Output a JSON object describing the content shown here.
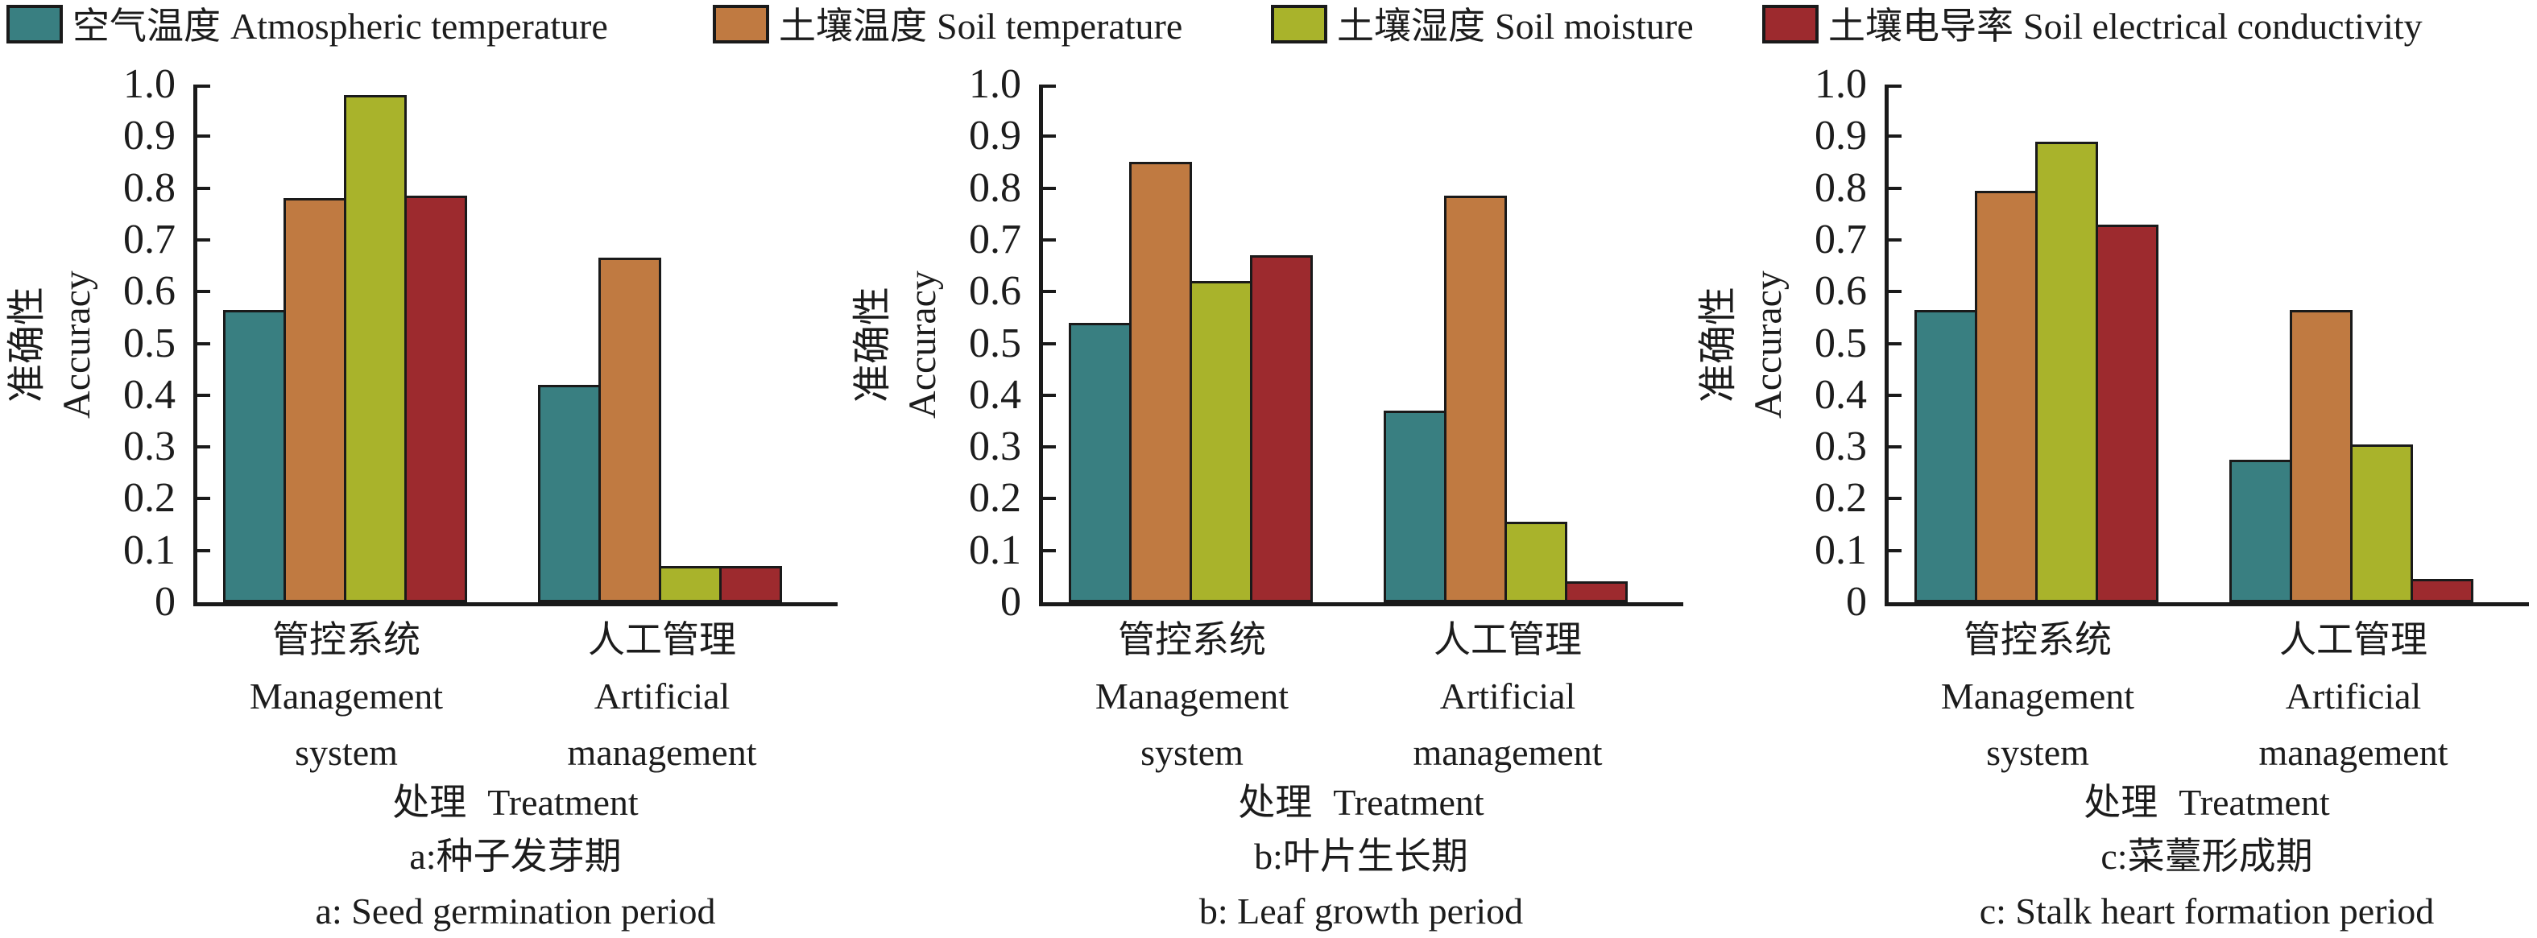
{
  "legend": {
    "items": [
      {
        "slug": "atmospheric-temperature",
        "label_zh": "空气温度",
        "label_en": "Atmospheric temperature",
        "color": "#397f81"
      },
      {
        "slug": "soil-temperature",
        "label_zh": "土壤温度",
        "label_en": "Soil temperature",
        "color": "#c07a41"
      },
      {
        "slug": "soil-moisture",
        "label_zh": "土壤湿度",
        "label_en": "Soil moisture",
        "color": "#a9b32b"
      },
      {
        "slug": "soil-electrical-conductivity",
        "label_zh": "土壤电导率",
        "label_en": "Soil electrical conductivity",
        "color": "#9d2a2e"
      }
    ]
  },
  "axis": {
    "ylabel_zh": "准确性",
    "ylabel_en": "Accuracy",
    "xlabel_zh": "处理",
    "xlabel_en": "Treatment",
    "yticks": [
      "1.0",
      "0.9",
      "0.8",
      "0.7",
      "0.6",
      "0.5",
      "0.4",
      "0.3",
      "0.2",
      "0.1",
      "0"
    ],
    "ylim": [
      0,
      1
    ],
    "grid": false
  },
  "chart_data": [
    {
      "type": "bar",
      "panel": "a",
      "caption_zh": "a:种子发芽期",
      "caption_en": "a: Seed germination period",
      "categories": [
        {
          "zh": "管控系统",
          "en_line1": "Management",
          "en_line2": "system"
        },
        {
          "zh": "人工管理",
          "en_line1": "Artificial",
          "en_line2": "management"
        }
      ],
      "series": [
        {
          "name": "空气温度 Atmospheric temperature",
          "values": [
            0.565,
            0.42
          ]
        },
        {
          "name": "土壤温度 Soil temperature",
          "values": [
            0.78,
            0.665
          ]
        },
        {
          "name": "土壤湿度 Soil moisture",
          "values": [
            0.98,
            0.07
          ]
        },
        {
          "name": "土壤电导率 Soil electrical conductivity",
          "values": [
            0.785,
            0.07
          ]
        }
      ]
    },
    {
      "type": "bar",
      "panel": "b",
      "caption_zh": "b:叶片生长期",
      "caption_en": "b: Leaf growth period",
      "categories": [
        {
          "zh": "管控系统",
          "en_line1": "Management",
          "en_line2": "system"
        },
        {
          "zh": "人工管理",
          "en_line1": "Artificial",
          "en_line2": "management"
        }
      ],
      "series": [
        {
          "name": "空气温度 Atmospheric temperature",
          "values": [
            0.54,
            0.37
          ]
        },
        {
          "name": "土壤温度 Soil temperature",
          "values": [
            0.85,
            0.785
          ]
        },
        {
          "name": "土壤湿度 Soil moisture",
          "values": [
            0.62,
            0.155
          ]
        },
        {
          "name": "土壤电导率 Soil electrical conductivity",
          "values": [
            0.67,
            0.04
          ]
        }
      ]
    },
    {
      "type": "bar",
      "panel": "c",
      "caption_zh": "c:菜薹形成期",
      "caption_en": "c: Stalk heart formation period",
      "categories": [
        {
          "zh": "管控系统",
          "en_line1": "Management",
          "en_line2": "system"
        },
        {
          "zh": "人工管理",
          "en_line1": "Artificial",
          "en_line2": "management"
        }
      ],
      "series": [
        {
          "name": "空气温度 Atmospheric temperature",
          "values": [
            0.565,
            0.275
          ]
        },
        {
          "name": "土壤温度 Soil temperature",
          "values": [
            0.795,
            0.565
          ]
        },
        {
          "name": "土壤湿度 Soil moisture",
          "values": [
            0.89,
            0.305
          ]
        },
        {
          "name": "土壤电导率 Soil electrical conductivity",
          "values": [
            0.73,
            0.045
          ]
        }
      ]
    }
  ]
}
